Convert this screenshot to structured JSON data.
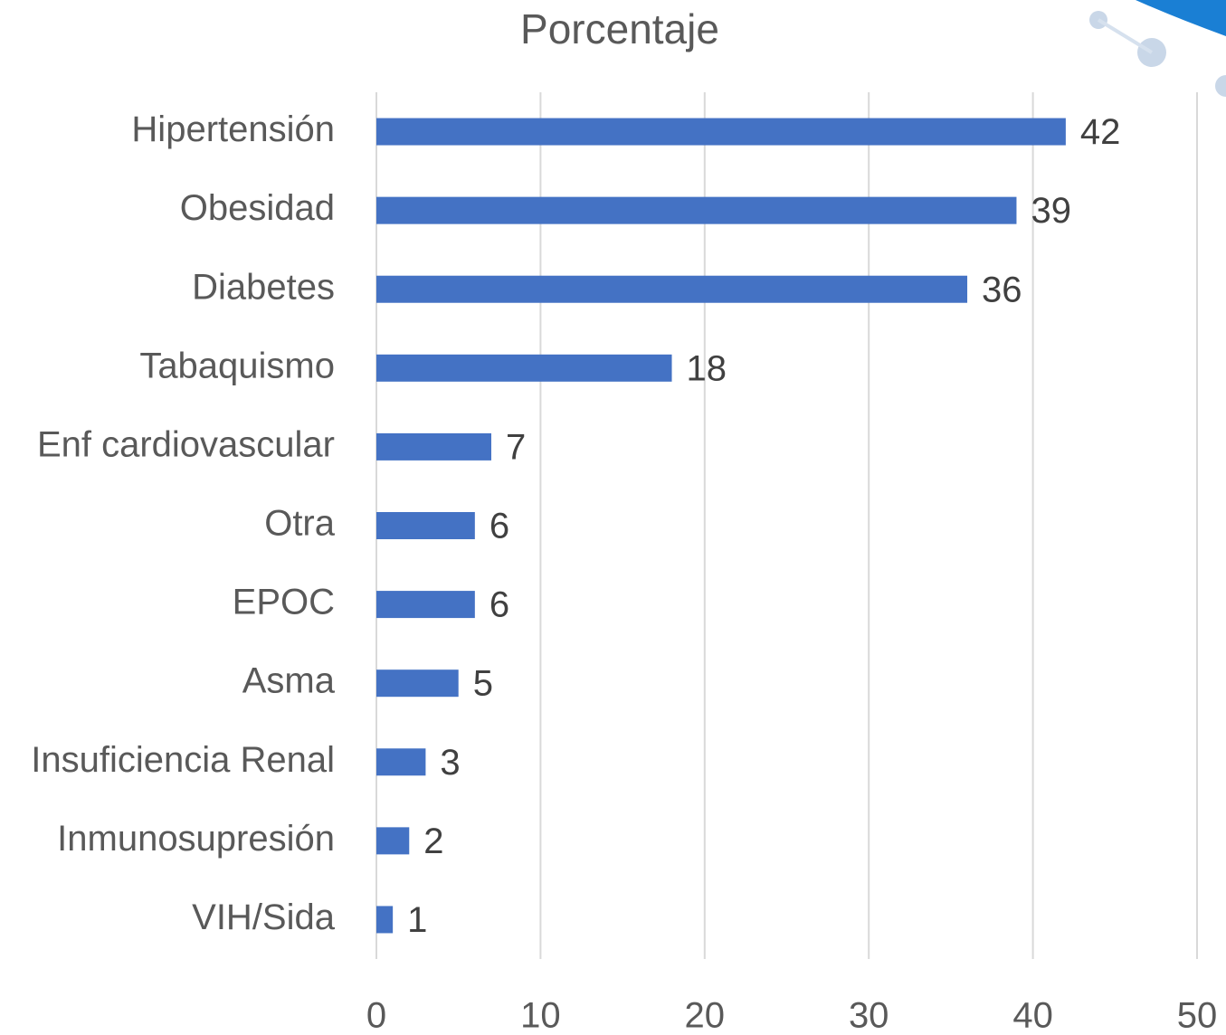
{
  "chart_data": {
    "type": "bar",
    "orientation": "horizontal",
    "title": "Porcentaje",
    "categories": [
      "Hipertensión",
      "Obesidad",
      "Diabetes",
      "Tabaquismo",
      "Enf cardiovascular",
      "Otra",
      "EPOC",
      "Asma",
      "Insuficiencia Renal",
      "Inmunosupresión",
      "VIH/Sida"
    ],
    "values": [
      42,
      39,
      36,
      18,
      7,
      6,
      6,
      5,
      3,
      2,
      1
    ],
    "color": "#4472c4",
    "xlim": [
      0,
      50
    ],
    "xticks": [
      0,
      10,
      20,
      30,
      40,
      50
    ],
    "grid": true
  }
}
